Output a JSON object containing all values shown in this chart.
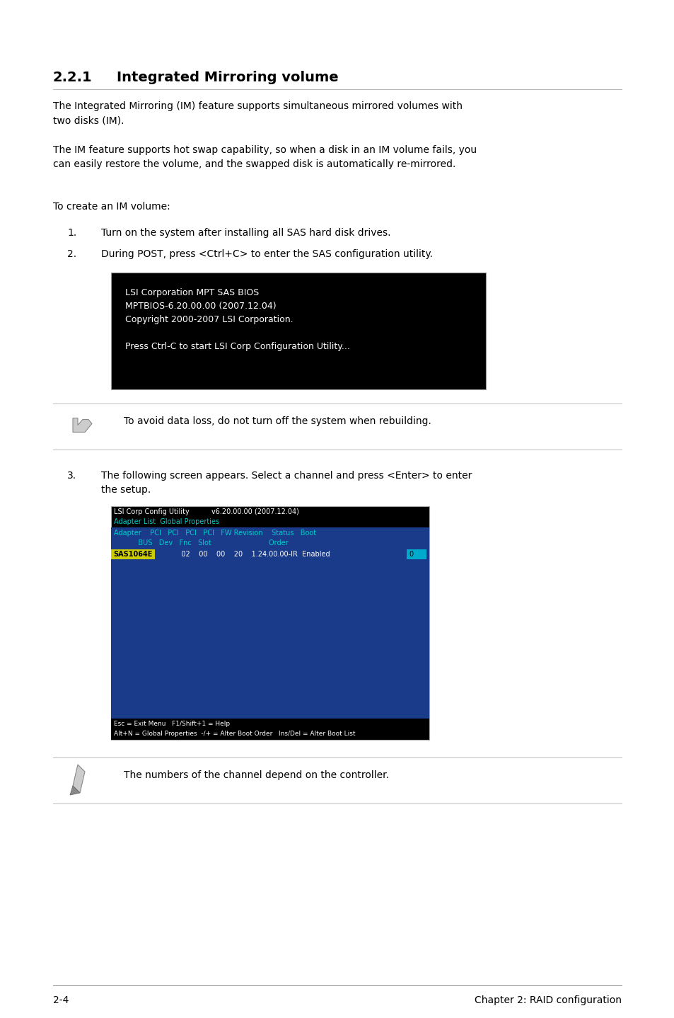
{
  "title_num": "2.2.1",
  "title_text": "Integrated Mirroring volume",
  "para1": "The Integrated Mirroring (IM) feature supports simultaneous mirrored volumes with\ntwo disks (IM).",
  "para2": "The IM feature supports hot swap capability, so when a disk in an IM volume fails, you\ncan easily restore the volume, and the swapped disk is automatically re-mirrored.",
  "para3": "To create an IM volume:",
  "step1": "Turn on the system after installing all SAS hard disk drives.",
  "step2": "During POST, press <Ctrl+C> to enter the SAS configuration utility.",
  "bios_lines": [
    "LSI Corporation MPT SAS BIOS",
    "MPTBIOS-6.20.00.00 (2007.12.04)",
    "Copyright 2000-2007 LSI Corporation.",
    "",
    "Press Ctrl-C to start LSI Corp Configuration Utility..."
  ],
  "note1": "To avoid data loss, do not turn off the system when rebuilding.",
  "step3_line1": "The following screen appears. Select a channel and press <Enter> to enter",
  "step3_line2": "the setup.",
  "sc2_title": "LSI Corp Config Utility          v6.20.00.00 (2007.12.04)",
  "sc2_menubar": "Adapter List  Global Properties",
  "sc2_col1": "Adapter    PCI   PCI   PCI   PCI   FW Revision    Status   Boot",
  "sc2_col2": "           BUS   Dev   Fnc   Slot                          Order",
  "sc2_row_data": "           02    00    00    20    1.24.00.00-IR  Enabled",
  "sc2_adapter_name": "SAS1064E",
  "sc2_foot1": "Esc = Exit Menu   F1/Shift+1 = Help",
  "sc2_foot2": "Alt+N = Global Properties  -/+ = Alter Boot Order   Ins/Del = Alter Boot List",
  "note2": "The numbers of the channel depend on the controller.",
  "footer_left": "2-4",
  "footer_right": "Chapter 2: RAID configuration",
  "page_bg": "#ffffff",
  "text_color": "#000000",
  "bios_bg": "#000000",
  "bios_text": "#ffffff",
  "sc2_outer_bg": "#000000",
  "sc2_inner_bg": "#1a3a8a",
  "sc2_header_bg": "#000000",
  "sc2_menubar_fg": "#00cccc",
  "sc2_col_fg": "#00cccc",
  "sc2_data_fg": "#ffffff",
  "sc2_highlight_bg": "#cccc00",
  "sc2_highlight_fg": "#000000",
  "sc2_boot_bg": "#00aacc",
  "sc2_boot_fg": "#000000",
  "sc2_footer_bg": "#000000",
  "sc2_footer_fg": "#ffffff"
}
